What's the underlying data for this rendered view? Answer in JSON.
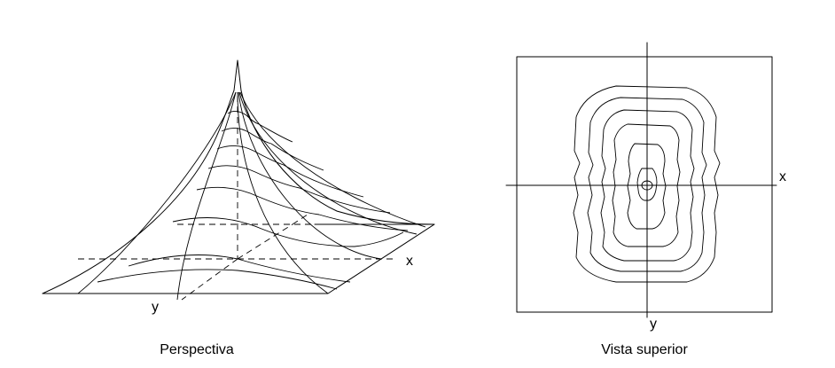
{
  "figure": {
    "perspective": {
      "x_axis_label": "x",
      "y_axis_label": "y",
      "caption": "Perspectiva"
    },
    "top_view": {
      "x_axis_label": "x",
      "y_axis_label": "y",
      "caption": "Vista superior"
    }
  }
}
